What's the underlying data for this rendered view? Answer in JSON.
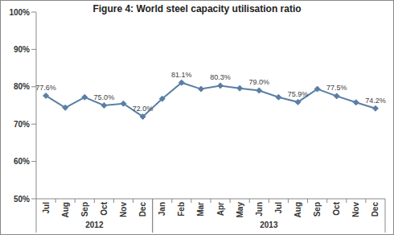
{
  "chart_data": {
    "type": "line",
    "title": "Figure 4: World steel capacity utilisation ratio",
    "categories": [
      "Jul",
      "Aug",
      "Sep",
      "Oct",
      "Nov",
      "Dec",
      "Jan",
      "Feb",
      "Mar",
      "Apr",
      "May",
      "Jun",
      "Jul",
      "Aug",
      "Sep",
      "Oct",
      "Nov",
      "Dec"
    ],
    "years": [
      "2012",
      "2012",
      "2012",
      "2012",
      "2012",
      "2012",
      "2013",
      "2013",
      "2013",
      "2013",
      "2013",
      "2013",
      "2013",
      "2013",
      "2013",
      "2013",
      "2013",
      "2013"
    ],
    "values": [
      77.6,
      74.4,
      77.2,
      75.0,
      75.5,
      72.0,
      76.8,
      81.1,
      79.4,
      80.3,
      79.6,
      79.0,
      77.2,
      75.9,
      79.4,
      77.5,
      75.8,
      74.2
    ],
    "value_labels": [
      "77.6%",
      null,
      null,
      "75.0%",
      null,
      "72.0%",
      null,
      "81.1%",
      null,
      "80.3%",
      null,
      "79.0%",
      null,
      "75.9%",
      null,
      "77.5%",
      null,
      "74.2%"
    ],
    "data_labels": true,
    "color": "#5a7fa5",
    "marker": "diamond",
    "ylim": [
      50,
      100
    ],
    "yticks": [
      {
        "value": 50,
        "label": "50%"
      },
      {
        "value": 60,
        "label": "60%"
      },
      {
        "value": 70,
        "label": "70%"
      },
      {
        "value": 80,
        "label": "80%"
      },
      {
        "value": 90,
        "label": "90%"
      },
      {
        "value": 100,
        "label": "100%"
      }
    ],
    "grid": false
  }
}
